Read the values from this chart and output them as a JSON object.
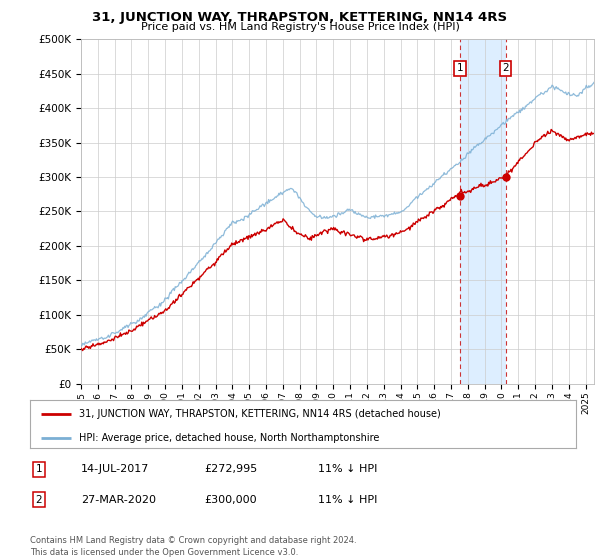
{
  "title": "31, JUNCTION WAY, THRAPSTON, KETTERING, NN14 4RS",
  "subtitle": "Price paid vs. HM Land Registry's House Price Index (HPI)",
  "ylabel_ticks": [
    "£0",
    "£50K",
    "£100K",
    "£150K",
    "£200K",
    "£250K",
    "£300K",
    "£350K",
    "£400K",
    "£450K",
    "£500K"
  ],
  "ytick_values": [
    0,
    50000,
    100000,
    150000,
    200000,
    250000,
    300000,
    350000,
    400000,
    450000,
    500000
  ],
  "ylim": [
    0,
    500000
  ],
  "hpi_color": "#7bafd4",
  "price_color": "#cc0000",
  "highlight_color": "#ddeeff",
  "marker1_year": 2017.54,
  "marker1_price": 272995,
  "marker1_label": "14-JUL-2017",
  "marker1_text": "£272,995",
  "marker1_pct": "11% ↓ HPI",
  "marker2_year": 2020.24,
  "marker2_price": 300000,
  "marker2_label": "27-MAR-2020",
  "marker2_text": "£300,000",
  "marker2_pct": "11% ↓ HPI",
  "legend_line1": "31, JUNCTION WAY, THRAPSTON, KETTERING, NN14 4RS (detached house)",
  "legend_line2": "HPI: Average price, detached house, North Northamptonshire",
  "footer": "Contains HM Land Registry data © Crown copyright and database right 2024.\nThis data is licensed under the Open Government Licence v3.0.",
  "xlim_start": 1995.0,
  "xlim_end": 2025.5,
  "xtick_years": [
    1995,
    1996,
    1997,
    1998,
    1999,
    2000,
    2001,
    2002,
    2003,
    2004,
    2005,
    2006,
    2007,
    2008,
    2009,
    2010,
    2011,
    2012,
    2013,
    2014,
    2015,
    2016,
    2017,
    2018,
    2019,
    2020,
    2021,
    2022,
    2023,
    2024,
    2025
  ],
  "background_color": "#ffffff",
  "grid_color": "#cccccc"
}
